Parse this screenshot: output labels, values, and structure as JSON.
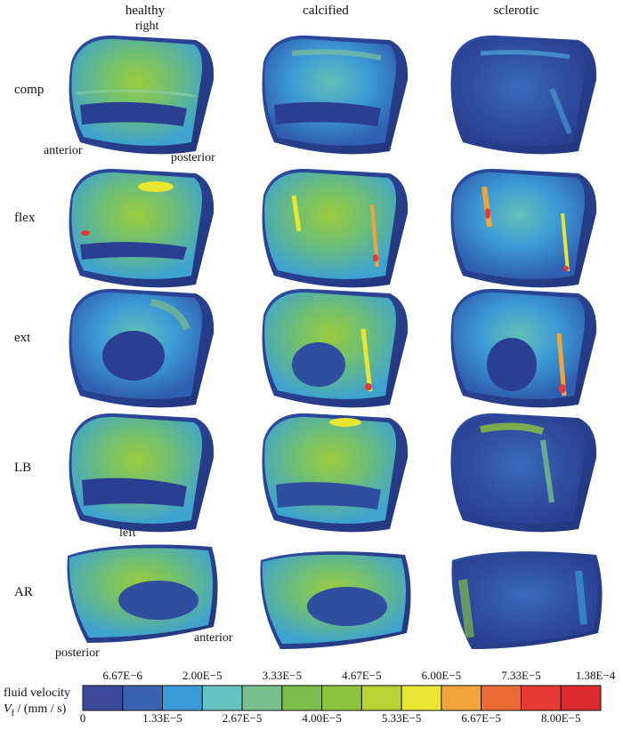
{
  "columns": [
    "healthy",
    "calcified",
    "sclerotic"
  ],
  "rows": [
    "comp",
    "flex",
    "ext",
    "LB",
    "AR"
  ],
  "directions": {
    "right": "right",
    "anterior_top": "anterior",
    "posterior_top": "posterior",
    "left": "left",
    "posterior_bottom": "posterior",
    "anterior_bottom": "anterior"
  },
  "legend": {
    "title_line1": "fluid velocity",
    "title_line2_symbol": "V",
    "title_line2_sub": "f",
    "title_line2_unit": " / (mm / s)",
    "colors": [
      "#3b4a9a",
      "#3a62b0",
      "#3b9bd8",
      "#64c3c0",
      "#77c08c",
      "#7cbc4a",
      "#8ec43d",
      "#b9d234",
      "#e8e533",
      "#f1a43a",
      "#ec6a34",
      "#e43a33",
      "#dc2a2e"
    ],
    "top_ticks": [
      "6.67E−6",
      "2.00E−5",
      "3.33E−5",
      "4.67E−5",
      "6.00E−5",
      "7.33E−5",
      "1.38E−4"
    ],
    "bottom_ticks": [
      "0",
      "1.33E−5",
      "2.67E−5",
      "4.00E−5",
      "5.33E−5",
      "6.67E−5",
      "8.00E−5"
    ]
  }
}
